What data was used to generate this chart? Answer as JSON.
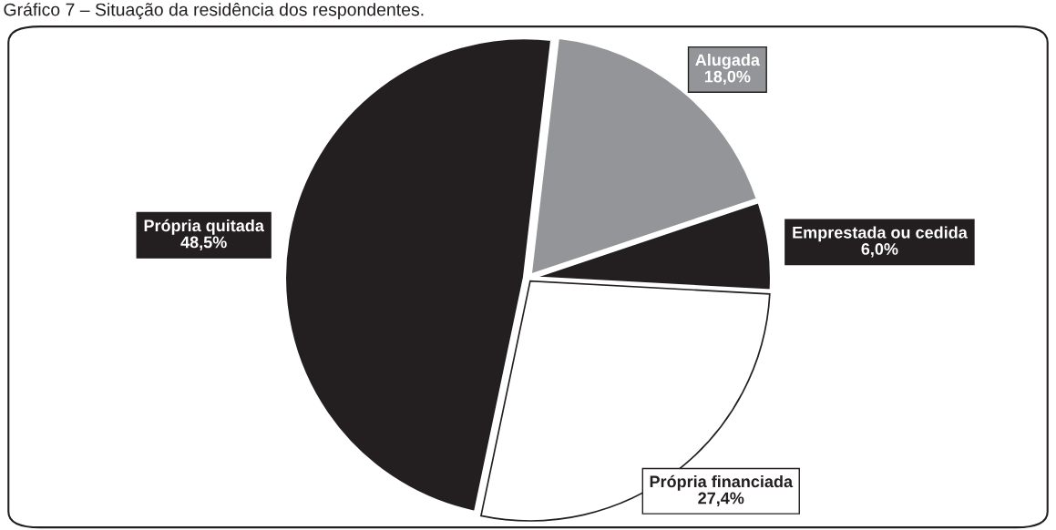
{
  "chart_data": {
    "type": "pie",
    "title": "Gráfico 7 – Situação da residência dos respondentes.",
    "categories": [
      "Alugada",
      "Emprestada ou cedida",
      "Própria financiada",
      "Própria quitada"
    ],
    "values": [
      18.0,
      6.0,
      27.4,
      48.5
    ],
    "value_labels": [
      "18,0%",
      "6,0%",
      "27,4%",
      "48,5%"
    ],
    "colors": [
      "#939598",
      "#231f20",
      "#ffffff",
      "#231f20"
    ]
  }
}
